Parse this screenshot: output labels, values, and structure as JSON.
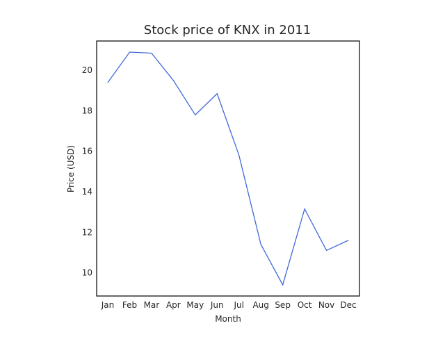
{
  "chart_data": {
    "type": "line",
    "title": "Stock price of KNX in 2011",
    "xlabel": "Month",
    "ylabel": "Price (USD)",
    "categories": [
      "Jan",
      "Feb",
      "Mar",
      "Apr",
      "May",
      "Jun",
      "Jul",
      "Aug",
      "Sep",
      "Oct",
      "Nov",
      "Dec"
    ],
    "series": [
      {
        "values": [
          19.4,
          20.9,
          20.85,
          19.5,
          17.8,
          18.85,
          15.8,
          11.4,
          9.4,
          13.15,
          11.1,
          11.6
        ],
        "color": "#4169d8"
      }
    ],
    "ylim": [
      8.85,
      21.45
    ],
    "yticks": [
      10,
      12,
      14,
      16,
      18,
      20
    ],
    "grid": false,
    "legend": "none"
  }
}
